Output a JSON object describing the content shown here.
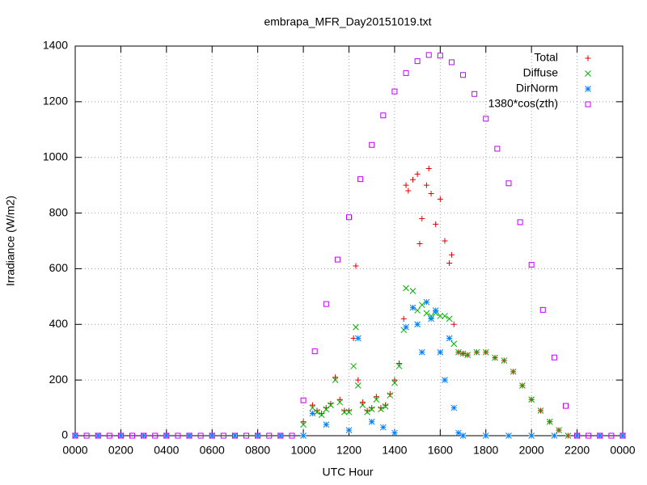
{
  "chart_data": {
    "type": "scatter",
    "title": "embrapa_MFR_Day20151019.txt",
    "xlabel": "UTC Hour",
    "ylabel": "Irradiance (W/m2)",
    "xlim": [
      0,
      24
    ],
    "ylim": [
      0,
      1400
    ],
    "xticks": [
      {
        "value": 0,
        "label": "0000"
      },
      {
        "value": 2,
        "label": "0200"
      },
      {
        "value": 4,
        "label": "0400"
      },
      {
        "value": 6,
        "label": "0600"
      },
      {
        "value": 8,
        "label": "0800"
      },
      {
        "value": 10,
        "label": "1000"
      },
      {
        "value": 12,
        "label": "1200"
      },
      {
        "value": 14,
        "label": "1400"
      },
      {
        "value": 16,
        "label": "1600"
      },
      {
        "value": 18,
        "label": "1800"
      },
      {
        "value": 20,
        "label": "2000"
      },
      {
        "value": 22,
        "label": "2200"
      },
      {
        "value": 24,
        "label": "0000"
      }
    ],
    "yticks": [
      0,
      200,
      400,
      600,
      800,
      1000,
      1200,
      1400
    ],
    "grid": true,
    "legend": "top-right",
    "series": [
      {
        "name": "Total",
        "color": "#e00000",
        "marker": "plus",
        "x": [
          10.0,
          10.4,
          10.6,
          10.8,
          11.0,
          11.2,
          11.4,
          11.6,
          11.8,
          12.0,
          12.2,
          12.3,
          12.4,
          12.6,
          12.8,
          13.0,
          13.2,
          13.4,
          13.6,
          13.8,
          14.0,
          14.2,
          14.4,
          14.5,
          14.6,
          14.8,
          15.0,
          15.1,
          15.2,
          15.4,
          15.5,
          15.6,
          15.8,
          16.0,
          16.2,
          16.4,
          16.5,
          16.6,
          16.8,
          17.0,
          17.2,
          17.6,
          18.0,
          18.4,
          18.8,
          19.2,
          19.6,
          20.0,
          20.4,
          20.8,
          21.2,
          21.6
        ],
        "values": [
          50,
          110,
          90,
          80,
          100,
          115,
          210,
          130,
          90,
          90,
          350,
          610,
          200,
          120,
          90,
          100,
          140,
          100,
          110,
          150,
          200,
          260,
          420,
          900,
          880,
          920,
          940,
          690,
          780,
          900,
          960,
          870,
          760,
          850,
          700,
          620,
          650,
          400,
          300,
          295,
          290,
          300,
          300,
          280,
          270,
          230,
          180,
          130,
          90,
          50,
          20,
          0
        ]
      },
      {
        "name": "Diffuse",
        "color": "#00b000",
        "marker": "cross",
        "x": [
          10.0,
          10.4,
          10.6,
          10.8,
          11.0,
          11.2,
          11.4,
          11.6,
          11.8,
          12.0,
          12.2,
          12.3,
          12.4,
          12.6,
          12.8,
          13.0,
          13.2,
          13.4,
          13.6,
          13.8,
          14.0,
          14.2,
          14.4,
          14.5,
          14.8,
          15.0,
          15.2,
          15.4,
          15.6,
          15.8,
          16.0,
          16.2,
          16.4,
          16.6,
          16.8,
          17.0,
          17.2,
          17.6,
          18.0,
          18.4,
          18.8,
          19.2,
          19.6,
          20.0,
          20.4,
          20.8,
          21.2,
          21.6
        ],
        "values": [
          40,
          100,
          85,
          75,
          95,
          110,
          200,
          120,
          85,
          85,
          250,
          390,
          180,
          110,
          85,
          95,
          130,
          95,
          105,
          145,
          190,
          250,
          380,
          530,
          520,
          450,
          470,
          440,
          430,
          440,
          430,
          430,
          420,
          330,
          300,
          295,
          290,
          300,
          300,
          280,
          270,
          230,
          180,
          130,
          90,
          50,
          20,
          0
        ]
      },
      {
        "name": "DirNorm",
        "color": "#0080ff",
        "marker": "star",
        "x": [
          0,
          1,
          2,
          3,
          4,
          5,
          6,
          7,
          8,
          9,
          10,
          10.4,
          11,
          12,
          12.4,
          13,
          13.5,
          14,
          14.5,
          14.8,
          15,
          15.2,
          15.4,
          15.6,
          15.8,
          16,
          16.2,
          16.4,
          16.6,
          16.8,
          17,
          18,
          19,
          20,
          21,
          22,
          23,
          24
        ],
        "values": [
          0,
          0,
          0,
          0,
          0,
          0,
          0,
          0,
          0,
          0,
          0,
          80,
          40,
          20,
          350,
          50,
          30,
          10,
          390,
          460,
          400,
          300,
          480,
          420,
          450,
          300,
          200,
          350,
          100,
          10,
          0,
          0,
          0,
          0,
          0,
          0,
          0,
          0
        ]
      },
      {
        "name": "1380*cos(zth)",
        "color": "#c000ff",
        "marker": "square",
        "x": [
          0,
          0.5,
          1,
          1.5,
          2,
          2.5,
          3,
          3.5,
          4,
          4.5,
          5,
          5.5,
          6,
          6.5,
          7,
          7.5,
          8,
          8.5,
          9,
          9.5,
          10,
          10.5,
          11,
          11.5,
          12,
          12.5,
          13,
          13.5,
          14,
          14.5,
          15,
          15.5,
          16,
          16.5,
          17,
          17.5,
          18,
          18.5,
          19,
          19.5,
          20,
          20.5,
          21,
          21.5,
          22,
          22.5,
          23,
          23.5,
          24
        ],
        "values": [
          0,
          0,
          0,
          0,
          0,
          0,
          0,
          0,
          0,
          0,
          0,
          0,
          0,
          0,
          0,
          0,
          0,
          0,
          0,
          0,
          127,
          303,
          473,
          633,
          785,
          922,
          1045,
          1151,
          1237,
          1303,
          1346,
          1368,
          1366,
          1342,
          1296,
          1228,
          1139,
          1031,
          907,
          767,
          614,
          452,
          281,
          107,
          0,
          0,
          0,
          0,
          0
        ]
      }
    ]
  }
}
